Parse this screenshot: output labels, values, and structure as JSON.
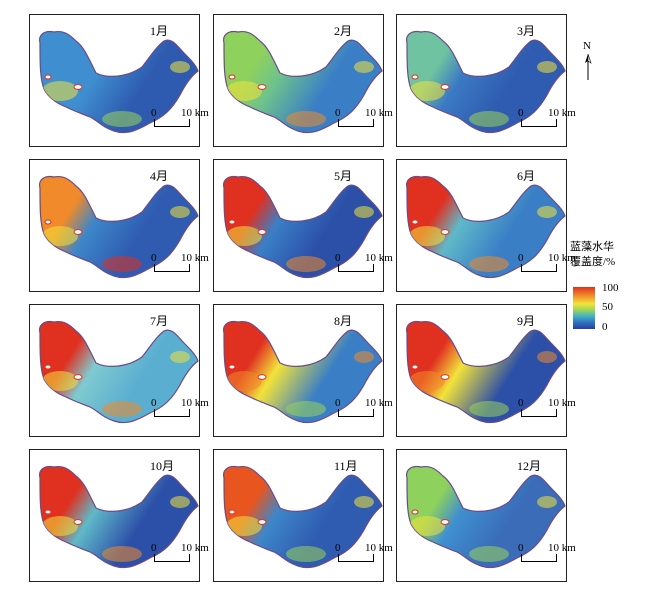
{
  "panels": [
    {
      "month": "1月",
      "profile": "jan"
    },
    {
      "month": "2月",
      "profile": "feb"
    },
    {
      "month": "3月",
      "profile": "mar"
    },
    {
      "month": "4月",
      "profile": "apr"
    },
    {
      "month": "5月",
      "profile": "may"
    },
    {
      "month": "6月",
      "profile": "jun"
    },
    {
      "month": "7月",
      "profile": "jul"
    },
    {
      "month": "8月",
      "profile": "aug"
    },
    {
      "month": "9月",
      "profile": "sep"
    },
    {
      "month": "10月",
      "profile": "oct"
    },
    {
      "month": "11月",
      "profile": "nov"
    },
    {
      "month": "12月",
      "profile": "dec"
    }
  ],
  "scale_bar": {
    "zero": "0",
    "label": "10 km"
  },
  "north_label": "N",
  "legend": {
    "title_line1": "蓝藻水华",
    "title_line2": "覆盖度/%",
    "max": "100",
    "mid": "50",
    "min": "0"
  },
  "colors": {
    "high": "#e03020",
    "mid": "#f2e33a",
    "low": "#2a3f9a"
  }
}
